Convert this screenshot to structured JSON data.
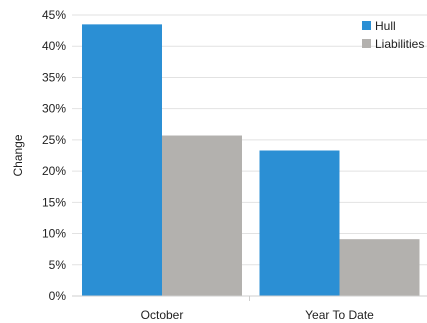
{
  "chart_data": {
    "type": "bar",
    "title": "",
    "xlabel": "",
    "ylabel": "Change",
    "categories": [
      "October",
      "Year To Date"
    ],
    "series": [
      {
        "name": "Hull",
        "values": [
          43.5,
          23.3
        ],
        "color": "#2b8fd4"
      },
      {
        "name": "Liabilities",
        "values": [
          25.7,
          9.1
        ],
        "color": "#b3b1ae"
      }
    ],
    "ylim": [
      0,
      45
    ],
    "yticks": [
      0,
      5,
      10,
      15,
      20,
      25,
      30,
      35,
      40,
      45
    ],
    "ytick_format": "percent",
    "grid": true,
    "legend": "top-right"
  }
}
